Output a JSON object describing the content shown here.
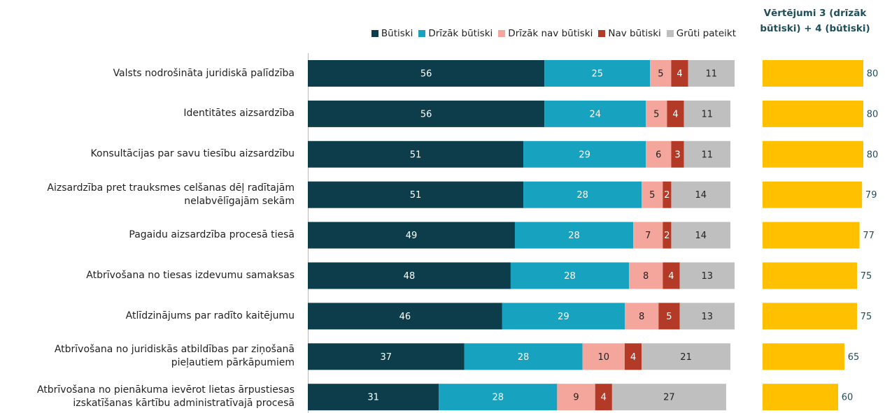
{
  "chart_data": [
    {
      "type": "stacked-bar",
      "orientation": "horizontal",
      "categories": [
        "Valsts nodrošināta juridiskā palīdzība",
        "Identitātes aizsardzība",
        "Konsultācijas par savu tiesību aizsardzību",
        "Aizsardzība pret trauksmes celšanas dēļ radītajām nelabvēlīgajām sekām",
        "Pagaidu aizsardzība procesā tiesā",
        "Atbrīvošana no tiesas izdevumu samaksas",
        "Atlīdzinājums par radīto kaitējumu",
        "Atbrīvošana no juridiskās atbildības par ziņošanā pieļautiem pārkāpumiem",
        "Atbrīvošana no pienākuma ievērot lietas ārpustiesas izskatīšanas kārtību administratīvajā procesā"
      ],
      "series": [
        {
          "name": "Būtiski",
          "color": "#0d3d4a",
          "values": [
            56,
            56,
            51,
            51,
            49,
            48,
            46,
            37,
            31
          ]
        },
        {
          "name": "Drīzāk būtiski",
          "color": "#17a2c0",
          "values": [
            25,
            24,
            29,
            28,
            28,
            28,
            29,
            28,
            28
          ]
        },
        {
          "name": "Drīzāk nav būtiski",
          "color": "#f4a59c",
          "values": [
            5,
            5,
            6,
            5,
            7,
            8,
            8,
            10,
            9
          ]
        },
        {
          "name": "Nav būtiski",
          "color": "#b33a26",
          "values": [
            4,
            4,
            3,
            2,
            2,
            4,
            5,
            4,
            4
          ]
        },
        {
          "name": "Grūti pateikt",
          "color": "#bfbfbf",
          "values": [
            11,
            11,
            11,
            14,
            14,
            13,
            13,
            21,
            27
          ]
        }
      ],
      "xlim": [
        0,
        100
      ],
      "legend": "top-right"
    },
    {
      "type": "bar",
      "orientation": "horizontal",
      "title": "Vērtējumi 3 (drīzāk būtiski) + 4 (būtiski)",
      "values": [
        80,
        80,
        80,
        79,
        77,
        75,
        75,
        65,
        60
      ],
      "color": "#ffc000",
      "xlim": [
        0,
        100
      ]
    }
  ]
}
